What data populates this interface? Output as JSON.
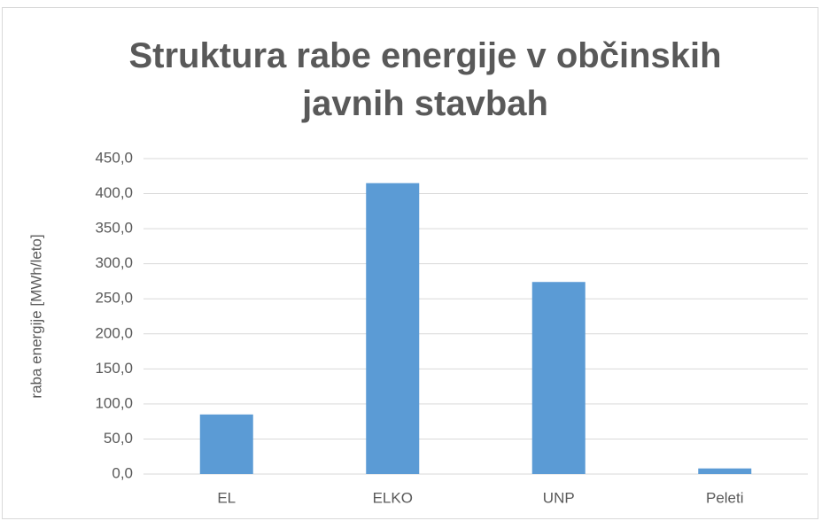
{
  "chart_data": {
    "type": "bar",
    "title": "Struktura rabe energije v občinskih javnih stavbah",
    "y_label": "raba energije [MWh/leto]",
    "categories": [
      "EL",
      "ELKO",
      "UNP",
      "Peleti"
    ],
    "values": [
      85,
      415,
      274,
      8
    ],
    "color": "#5b9bd5",
    "ylim": [
      0,
      450
    ],
    "yticks": [
      {
        "value": 0,
        "label": "0,0"
      },
      {
        "value": 50,
        "label": "50,0"
      },
      {
        "value": 100,
        "label": "100,0"
      },
      {
        "value": 150,
        "label": "150,0"
      },
      {
        "value": 200,
        "label": "200,0"
      },
      {
        "value": 250,
        "label": "250,0"
      },
      {
        "value": 300,
        "label": "300,0"
      },
      {
        "value": 350,
        "label": "350,0"
      },
      {
        "value": 400,
        "label": "400,0"
      },
      {
        "value": 450,
        "label": "450,0"
      }
    ],
    "grid": true
  }
}
